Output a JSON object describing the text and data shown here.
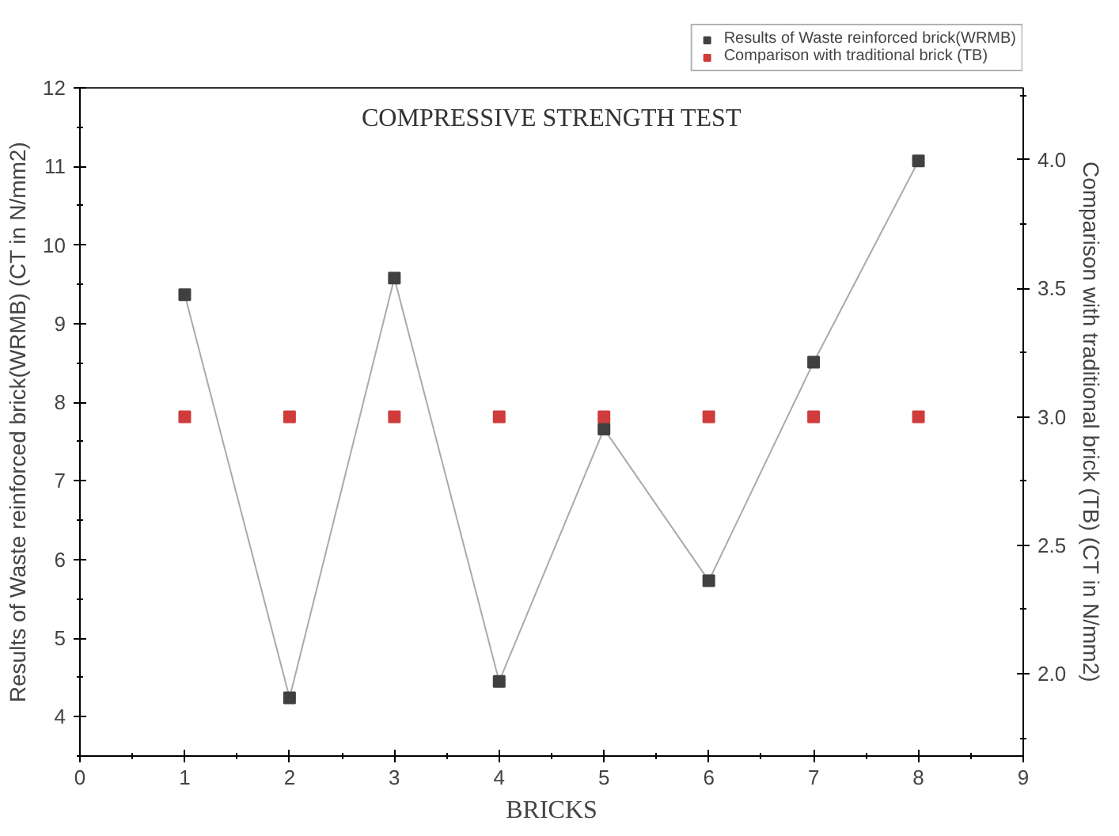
{
  "chart_data": {
    "type": "line",
    "title": "COMPRESSIVE STRENGTH TEST",
    "xlabel": "BRICKS",
    "ylabel": "Results of Waste reinforced brick(WRMB) (CT in N/mm2)",
    "y2label": "Comparison with traditional brick (TB) (CT in N/mm2)",
    "x": [
      1,
      2,
      3,
      4,
      5,
      6,
      7,
      8
    ],
    "series": [
      {
        "name": "Results of Waste reinforced brick(WRMB)",
        "color": "#404040",
        "values": [
          9.37,
          4.24,
          9.58,
          4.45,
          7.66,
          5.73,
          8.51,
          11.07
        ]
      },
      {
        "name": "Comparison with traditional brick (TB)",
        "type": "scatter",
        "axis": "y2",
        "color": "#d03c3c",
        "values": [
          3.0,
          3.0,
          3.0,
          3.0,
          3.0,
          3.0,
          3.0,
          3.0
        ]
      }
    ],
    "xlim": [
      0,
      9
    ],
    "xticks": [
      0,
      1,
      2,
      3,
      4,
      5,
      6,
      7,
      8,
      9
    ],
    "ylim": [
      3.5,
      12
    ],
    "yticks": [
      4,
      5,
      6,
      7,
      8,
      9,
      10,
      11,
      12
    ],
    "y2lim": [
      1.68,
      4.28
    ],
    "y2ticks": [
      {
        "value": 2,
        "label": "2.0"
      },
      {
        "value": 2.5,
        "label": "2.5"
      },
      {
        "value": 3,
        "label": "3.0"
      },
      {
        "value": 3.5,
        "label": "3.5"
      },
      {
        "value": 4,
        "label": "4.0"
      }
    ],
    "marker": "square",
    "grid": false,
    "legend": "top right"
  }
}
